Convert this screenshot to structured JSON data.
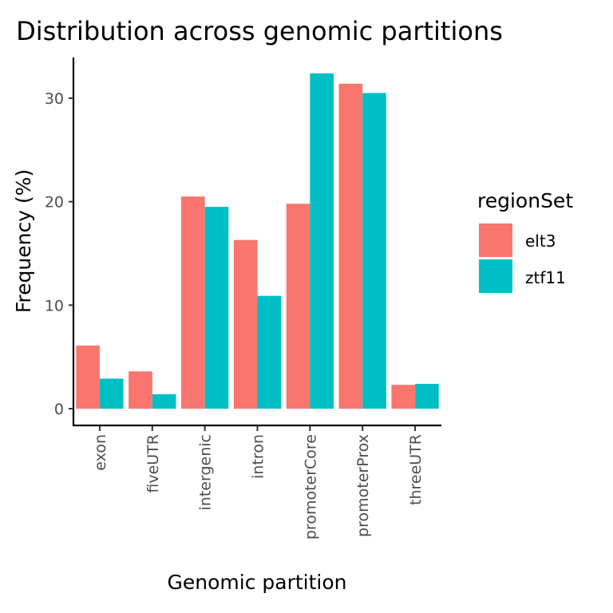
{
  "chart_data": {
    "type": "bar",
    "title": "Distribution across genomic partitions",
    "xlabel": "Genomic partition",
    "ylabel": "Frequency (%)",
    "categories": [
      "exon",
      "fiveUTR",
      "intergenic",
      "intron",
      "promoterCore",
      "promoterProx",
      "threeUTR"
    ],
    "series": [
      {
        "name": "elt3",
        "color": "#F8766D",
        "values": [
          6.1,
          3.6,
          20.5,
          16.3,
          19.8,
          31.4,
          2.3
        ]
      },
      {
        "name": "ztf11",
        "color": "#00BFC4",
        "values": [
          2.9,
          1.4,
          19.5,
          10.9,
          32.4,
          30.5,
          2.4
        ]
      }
    ],
    "ylim": [
      0,
      33
    ],
    "yticks": [
      0,
      10,
      20,
      30
    ],
    "legend": {
      "title": "regionSet",
      "placement": "right"
    },
    "grid": false
  }
}
